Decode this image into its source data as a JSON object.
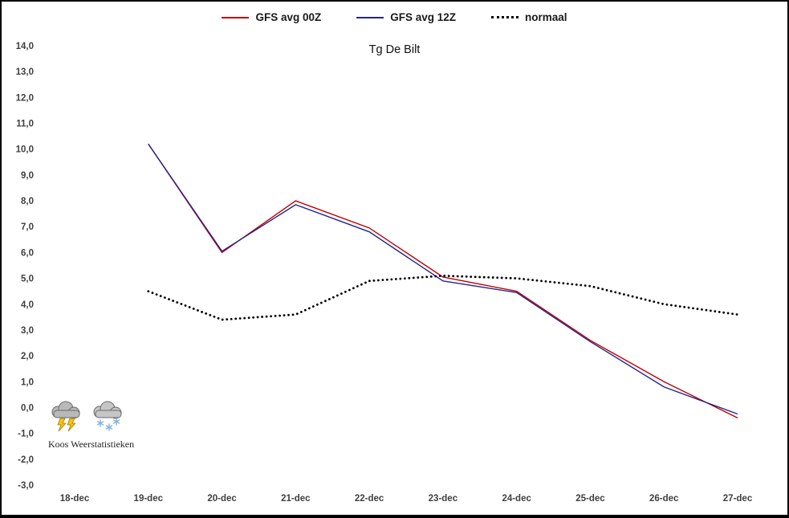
{
  "title": "Tg De Bilt",
  "legend": [
    {
      "label": "GFS avg 00Z",
      "color": "#c00000",
      "dotted": false
    },
    {
      "label": "GFS avg 12Z",
      "color": "#24248f",
      "dotted": false
    },
    {
      "label": "normaal",
      "color": "#000000",
      "dotted": true
    }
  ],
  "watermark": {
    "label": "Koos Weerstatistieken"
  },
  "icons": [
    {
      "name": "storm-cloud-icon"
    },
    {
      "name": "snow-cloud-icon"
    }
  ],
  "chart_data": {
    "type": "line",
    "title": "Tg De Bilt",
    "categories": [
      "18-dec",
      "19-dec",
      "20-dec",
      "21-dec",
      "22-dec",
      "23-dec",
      "24-dec",
      "25-dec",
      "26-dec",
      "27-dec"
    ],
    "ylim": [
      -3,
      14
    ],
    "ytick_labels": [
      "14,0",
      "13,0",
      "12,0",
      "11,0",
      "10,0",
      "9,0",
      "8,0",
      "7,0",
      "6,0",
      "5,0",
      "4,0",
      "3,0",
      "2,0",
      "1,0",
      "0,0",
      "-1,0",
      "-2,0",
      "-3,0"
    ],
    "grid": false,
    "legend_position": "top",
    "series": [
      {
        "name": "GFS avg 00Z",
        "color": "#c00000",
        "dash": "solid",
        "values": [
          null,
          10.2,
          6.0,
          8.0,
          6.95,
          5.05,
          4.5,
          2.6,
          1.0,
          -0.4
        ]
      },
      {
        "name": "GFS avg 12Z",
        "color": "#24248f",
        "dash": "solid",
        "values": [
          null,
          10.2,
          6.05,
          7.85,
          6.8,
          4.9,
          4.45,
          2.55,
          0.8,
          -0.25
        ]
      },
      {
        "name": "normaal",
        "color": "#000000",
        "dash": "dotted",
        "values": [
          null,
          4.5,
          3.4,
          3.6,
          4.9,
          5.1,
          5.0,
          4.7,
          4.0,
          3.6
        ]
      }
    ]
  }
}
